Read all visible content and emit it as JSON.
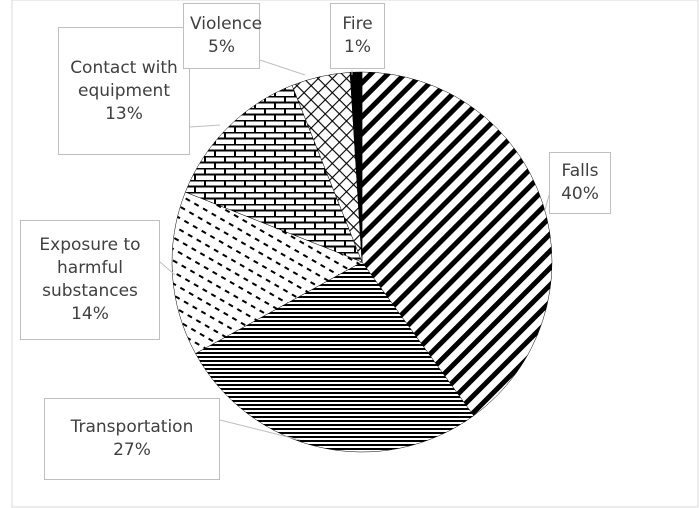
{
  "chart_data": {
    "type": "pie",
    "categories": [
      "Falls",
      "Transportation",
      "Exposure to harmful substances",
      "Contact with equipment",
      "Violence",
      "Fire"
    ],
    "values": [
      40,
      27,
      14,
      13,
      5,
      1
    ],
    "value_labels": [
      "40%",
      "27%",
      "14%",
      "13%",
      "5%",
      "1%"
    ],
    "color": "#000000"
  }
}
